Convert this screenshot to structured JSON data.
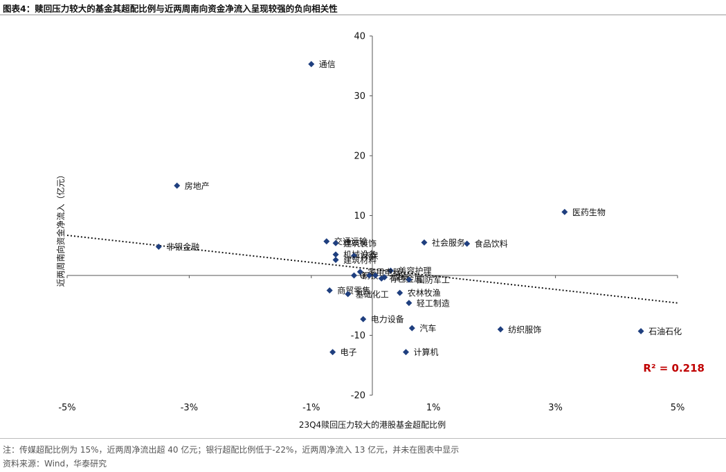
{
  "figure": {
    "title": "图表4：赎回压力较大的基金其超配比例与近两周南向资金净流入呈现较强的负向相关性",
    "note": "注：传媒超配比例为 15%，近两周净流出超 40 亿元；银行超配比例低于-22%，近两周净流入 13 亿元，并未在图表中显示",
    "source": "资料来源：Wind，华泰研究"
  },
  "chart_data": {
    "type": "scatter",
    "xlabel": "23Q4赎回压力较大的港股基金超配比例",
    "ylabel": "近两周南向资金净流入（亿元）",
    "xlim": [
      -5,
      5
    ],
    "ylim": [
      -20,
      40
    ],
    "x_ticks": [
      -5,
      -3,
      -1,
      1,
      3,
      5
    ],
    "x_tick_labels": [
      "-5%",
      "-3%",
      "-1%",
      "1%",
      "3%",
      "5%"
    ],
    "y_ticks": [
      -20,
      -10,
      0,
      10,
      20,
      30,
      40
    ],
    "y_tick_labels": [
      "-20",
      "-10",
      "0",
      "10",
      "20",
      "30",
      "40"
    ],
    "marker_color": "#1f3f7f",
    "trendline_color": "#111111",
    "r2_color": "#c00000",
    "r2_label": "R² = 0.218",
    "trendline": {
      "style": "dotted",
      "from": [
        -5,
        6.7
      ],
      "to": [
        5,
        -4.6
      ]
    },
    "points": [
      {
        "x": -1.0,
        "y": 35.3,
        "label": "通信"
      },
      {
        "x": -3.2,
        "y": 15.0,
        "label": "房地产"
      },
      {
        "x": 3.15,
        "y": 10.6,
        "label": "医药生物"
      },
      {
        "x": -0.75,
        "y": 5.7,
        "label": "交通运输"
      },
      {
        "x": -0.6,
        "y": 5.4,
        "label": "建筑装饰"
      },
      {
        "x": 0.85,
        "y": 5.5,
        "label": "社会服务"
      },
      {
        "x": 1.55,
        "y": 5.3,
        "label": "食品饮料"
      },
      {
        "x": -3.5,
        "y": 4.8,
        "label": "非银金融"
      },
      {
        "x": -0.6,
        "y": 3.5,
        "label": "机械设备"
      },
      {
        "x": -0.3,
        "y": 3.3,
        "label": "环保"
      },
      {
        "x": -0.6,
        "y": 2.6,
        "label": "建筑材料"
      },
      {
        "x": 0.3,
        "y": 0.8,
        "label": "美容护理"
      },
      {
        "x": -0.2,
        "y": 0.6,
        "label": "家用电器"
      },
      {
        "x": -0.3,
        "y": 0.0,
        "label": "钢铁"
      },
      {
        "x": 0.2,
        "y": -0.3,
        "label": "煤炭"
      },
      {
        "x": -0.05,
        "y": 0.0,
        "label": ""
      },
      {
        "x": 0.05,
        "y": 0.0,
        "label": ""
      },
      {
        "x": 0.15,
        "y": -0.5,
        "label": "有色金属"
      },
      {
        "x": 0.6,
        "y": -0.7,
        "label": "国防军工"
      },
      {
        "x": -0.7,
        "y": -2.5,
        "label": "商贸零售"
      },
      {
        "x": 0.45,
        "y": -2.9,
        "label": "农林牧渔"
      },
      {
        "x": -0.4,
        "y": -3.1,
        "label": "基础化工"
      },
      {
        "x": 0.6,
        "y": -4.6,
        "label": "轻工制造"
      },
      {
        "x": -0.15,
        "y": -7.3,
        "label": "电力设备"
      },
      {
        "x": 0.65,
        "y": -8.8,
        "label": "汽车"
      },
      {
        "x": 2.1,
        "y": -9.0,
        "label": "纺织服饰"
      },
      {
        "x": 4.4,
        "y": -9.3,
        "label": "石油石化"
      },
      {
        "x": -0.65,
        "y": -12.8,
        "label": "电子"
      },
      {
        "x": 0.55,
        "y": -12.8,
        "label": "计算机"
      }
    ]
  }
}
